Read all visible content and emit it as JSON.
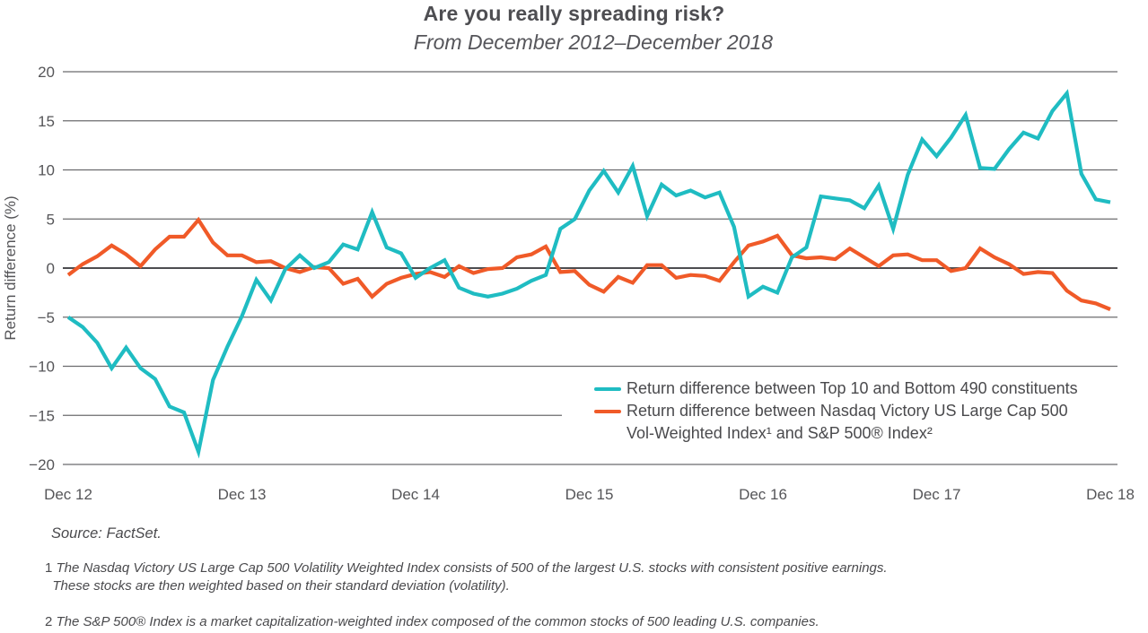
{
  "title": "Are you really spreading risk?",
  "subtitle": "From December 2012–December 2018",
  "source": "Source: FactSet.",
  "footnotes": [
    {
      "num": "1",
      "lines": [
        "The Nasdaq Victory US Large Cap 500 Volatility Weighted Index consists of 500 of the largest U.S. stocks with consistent positive earnings.",
        "These stocks are then weighted based on their standard deviation (volatility)."
      ]
    },
    {
      "num": "2",
      "lines": [
        "The S&P 500® Index is a market capitalization-weighted index composed of the common stocks of 500 leading U.S. companies."
      ]
    }
  ],
  "colors": {
    "teal": "#1fbcc2",
    "orange": "#f05a28",
    "grid": "#6b6b6e",
    "zero": "#4d4d50"
  },
  "chart_data": {
    "type": "line",
    "title": "Are you really spreading risk?",
    "subtitle": "From December 2012–December 2018",
    "xlabel": "",
    "ylabel": "Return difference (%)",
    "ylim": [
      -20,
      20
    ],
    "yticks": [
      20,
      15,
      10,
      5,
      0,
      -5,
      -10,
      -15,
      -20
    ],
    "ytick_labels": [
      "20",
      "15",
      "10",
      "5",
      "0",
      "−5",
      "−10",
      "−15",
      "−20"
    ],
    "x_tick_labels": [
      "Dec 12",
      "Dec 13",
      "Dec 14",
      "Dec 15",
      "Dec 16",
      "Dec 17",
      "Dec 18"
    ],
    "x_unit": "monthly, Dec 2012 to Dec 2018 (73 points)",
    "grid": true,
    "legend_position": "bottom-right",
    "series": [
      {
        "name": "Return difference between Top 10 and Bottom 490 constituents",
        "color": "#1fbcc2",
        "values": [
          -5.0,
          -6.0,
          -7.6,
          -10.2,
          -8.1,
          -10.2,
          -11.3,
          -14.1,
          -14.7,
          -18.7,
          -11.4,
          -8.0,
          -4.9,
          -1.2,
          -3.3,
          -0.1,
          1.3,
          0.0,
          0.6,
          2.4,
          1.9,
          5.7,
          2.1,
          1.5,
          -1.0,
          0.0,
          0.8,
          -2.0,
          -2.6,
          -2.9,
          -2.6,
          -2.1,
          -1.3,
          -0.7,
          4.0,
          5.0,
          7.9,
          9.9,
          7.7,
          10.4,
          5.3,
          8.5,
          7.4,
          7.9,
          7.2,
          7.7,
          4.2,
          -2.9,
          -1.9,
          -2.5,
          1.1,
          2.1,
          7.3,
          7.1,
          6.9,
          6.1,
          8.4,
          4.0,
          9.5,
          13.1,
          11.4,
          13.3,
          15.6,
          10.2,
          10.1,
          12.1,
          13.8,
          13.2,
          16.0,
          17.8,
          9.6,
          7.0,
          6.7
        ]
      },
      {
        "name": "Return difference between Nasdaq Victory US Large Cap 500 Vol-Weighted Index¹ and S&P 500® Index²",
        "color": "#f05a28",
        "values": [
          -0.7,
          0.4,
          1.2,
          2.3,
          1.4,
          0.2,
          1.9,
          3.2,
          3.2,
          4.9,
          2.6,
          1.3,
          1.3,
          0.6,
          0.7,
          0.0,
          -0.4,
          0.1,
          0.0,
          -1.6,
          -1.1,
          -2.9,
          -1.6,
          -1.0,
          -0.6,
          -0.4,
          -0.9,
          0.2,
          -0.5,
          -0.1,
          0.0,
          1.1,
          1.4,
          2.2,
          -0.4,
          -0.3,
          -1.7,
          -2.4,
          -0.9,
          -1.5,
          0.3,
          0.3,
          -1.0,
          -0.7,
          -0.8,
          -1.3,
          0.6,
          2.3,
          2.7,
          3.3,
          1.3,
          1.0,
          1.1,
          0.9,
          2.0,
          1.1,
          0.2,
          1.3,
          1.4,
          0.8,
          0.8,
          -0.3,
          0.0,
          2.0,
          1.1,
          0.4,
          -0.6,
          -0.4,
          -0.5,
          -2.3,
          -3.3,
          -3.6,
          -4.2
        ]
      }
    ]
  },
  "legend": {
    "item1": "Return difference between Top 10 and Bottom 490 constituents",
    "item2_line1": "Return difference between Nasdaq Victory US Large Cap 500",
    "item2_line2": "Vol-Weighted Index¹ and S&P 500® Index²"
  }
}
